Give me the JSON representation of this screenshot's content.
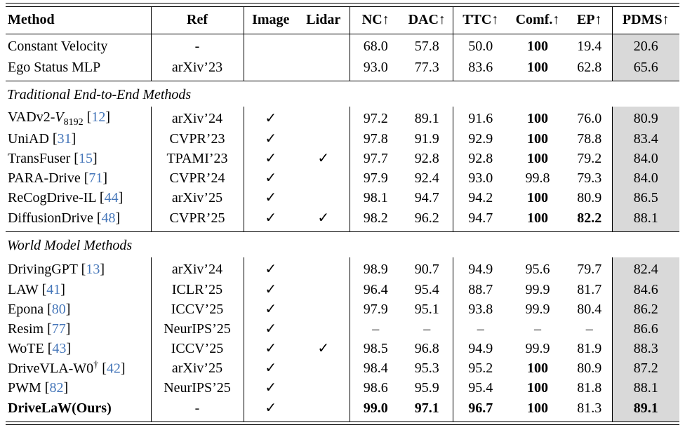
{
  "colors": {
    "citation_blue": "#4576b9",
    "pdms_band": "#d9d9d9"
  },
  "icons": {
    "check": "✓"
  },
  "citation": {
    "open": "[",
    "close": "]"
  },
  "table": {
    "headers": [
      {
        "key": "method",
        "label": "Method",
        "arrow": ""
      },
      {
        "key": "ref",
        "label": "Ref",
        "arrow": ""
      },
      {
        "key": "image",
        "label": "Image",
        "arrow": ""
      },
      {
        "key": "lidar",
        "label": "Lidar",
        "arrow": ""
      },
      {
        "key": "nc",
        "label": "NC",
        "arrow": "↑"
      },
      {
        "key": "dac",
        "label": "DAC",
        "arrow": "↑"
      },
      {
        "key": "ttc",
        "label": "TTC",
        "arrow": "↑"
      },
      {
        "key": "comf",
        "label": "Comf.",
        "arrow": "↑"
      },
      {
        "key": "ep",
        "label": "EP",
        "arrow": "↑"
      },
      {
        "key": "pdms",
        "label": "PDMS",
        "arrow": "↑"
      }
    ],
    "sections": [
      {
        "title": "",
        "rows": [
          {
            "method": "Constant Velocity",
            "ref": "-",
            "image": false,
            "lidar": false,
            "nc": "68.0",
            "dac": "57.8",
            "ttc": "50.0",
            "comf": "100",
            "ep": "19.4",
            "pdms": "20.6",
            "bold": [
              "comf"
            ]
          },
          {
            "method": "Ego Status MLP",
            "ref": "arXiv’23",
            "image": false,
            "lidar": false,
            "nc": "93.0",
            "dac": "77.3",
            "ttc": "83.6",
            "comf": "100",
            "ep": "62.8",
            "pdms": "65.6",
            "bold": [
              "comf"
            ]
          }
        ]
      },
      {
        "title": "Traditional End-to-End Methods",
        "rows": [
          {
            "method": "VADv2-",
            "method_script": "V",
            "method_sub": "8192",
            "cite": "12",
            "ref": "arXiv’24",
            "image": true,
            "lidar": false,
            "nc": "97.2",
            "dac": "89.1",
            "ttc": "91.6",
            "comf": "100",
            "ep": "76.0",
            "pdms": "80.9",
            "bold": [
              "comf"
            ]
          },
          {
            "method": "UniAD",
            "cite": "31",
            "ref": "CVPR’23",
            "image": true,
            "lidar": false,
            "nc": "97.8",
            "dac": "91.9",
            "ttc": "92.9",
            "comf": "100",
            "ep": "78.8",
            "pdms": "83.4",
            "bold": [
              "comf"
            ]
          },
          {
            "method": "TransFuser",
            "cite": "15",
            "ref": "TPAMI’23",
            "image": true,
            "lidar": true,
            "nc": "97.7",
            "dac": "92.8",
            "ttc": "92.8",
            "comf": "100",
            "ep": "79.2",
            "pdms": "84.0",
            "bold": [
              "comf"
            ]
          },
          {
            "method": "PARA-Drive",
            "cite": "71",
            "ref": "CVPR’24",
            "image": true,
            "lidar": false,
            "nc": "97.9",
            "dac": "92.4",
            "ttc": "93.0",
            "comf": "99.8",
            "ep": "79.3",
            "pdms": "84.0",
            "bold": []
          },
          {
            "method": "ReCogDrive-IL",
            "cite": "44",
            "ref": "arXiv’25",
            "image": true,
            "lidar": false,
            "nc": "98.1",
            "dac": "94.7",
            "ttc": "94.2",
            "comf": "100",
            "ep": "80.9",
            "pdms": "86.5",
            "bold": [
              "comf"
            ]
          },
          {
            "method": "DiffusionDrive",
            "cite": "48",
            "ref": "CVPR’25",
            "image": true,
            "lidar": true,
            "nc": "98.2",
            "dac": "96.2",
            "ttc": "94.7",
            "comf": "100",
            "ep": "82.2",
            "pdms": "88.1",
            "bold": [
              "comf",
              "ep"
            ]
          }
        ]
      },
      {
        "title": "World Model Methods",
        "rows": [
          {
            "method": "DrivingGPT",
            "cite": "13",
            "ref": "arXiv’24",
            "image": true,
            "lidar": false,
            "nc": "98.9",
            "dac": "90.7",
            "ttc": "94.9",
            "comf": "95.6",
            "ep": "79.7",
            "pdms": "82.4",
            "bold": []
          },
          {
            "method": "LAW",
            "cite": "41",
            "ref": "ICLR’25",
            "image": true,
            "lidar": false,
            "nc": "96.4",
            "dac": "95.4",
            "ttc": "88.7",
            "comf": "99.9",
            "ep": "81.7",
            "pdms": "84.6",
            "bold": []
          },
          {
            "method": "Epona",
            "cite": "80",
            "ref": "ICCV’25",
            "image": true,
            "lidar": false,
            "nc": "97.9",
            "dac": "95.1",
            "ttc": "93.8",
            "comf": "99.9",
            "ep": "80.4",
            "pdms": "86.2",
            "bold": []
          },
          {
            "method": "Resim",
            "cite": "77",
            "ref": "NeurIPS’25",
            "image": true,
            "lidar": false,
            "nc": "–",
            "dac": "–",
            "ttc": "–",
            "comf": "–",
            "ep": "–",
            "pdms": "86.6",
            "bold": []
          },
          {
            "method": "WoTE",
            "cite": "43",
            "ref": "ICCV’25",
            "image": true,
            "lidar": true,
            "nc": "98.5",
            "dac": "96.8",
            "ttc": "94.9",
            "comf": "99.9",
            "ep": "81.9",
            "pdms": "88.3",
            "bold": []
          },
          {
            "method": "DriveVLA-W0",
            "method_sup": "†",
            "cite": "42",
            "ref": "arXiv’25",
            "image": true,
            "lidar": false,
            "nc": "98.4",
            "dac": "95.3",
            "ttc": "95.2",
            "comf": "100",
            "ep": "80.9",
            "pdms": "87.2",
            "bold": [
              "comf"
            ]
          },
          {
            "method": "PWM",
            "cite": "82",
            "ref": "NeurIPS’25",
            "image": true,
            "lidar": false,
            "nc": "98.6",
            "dac": "95.9",
            "ttc": "95.4",
            "comf": "100",
            "ep": "81.8",
            "pdms": "88.1",
            "bold": [
              "comf"
            ]
          },
          {
            "method": "DriveLaW(Ours)",
            "ref": "-",
            "image": true,
            "lidar": false,
            "nc": "99.0",
            "dac": "97.1",
            "ttc": "96.7",
            "comf": "100",
            "ep": "81.3",
            "pdms": "89.1",
            "bold": [
              "method",
              "nc",
              "dac",
              "ttc",
              "comf",
              "pdms"
            ]
          }
        ]
      }
    ]
  }
}
